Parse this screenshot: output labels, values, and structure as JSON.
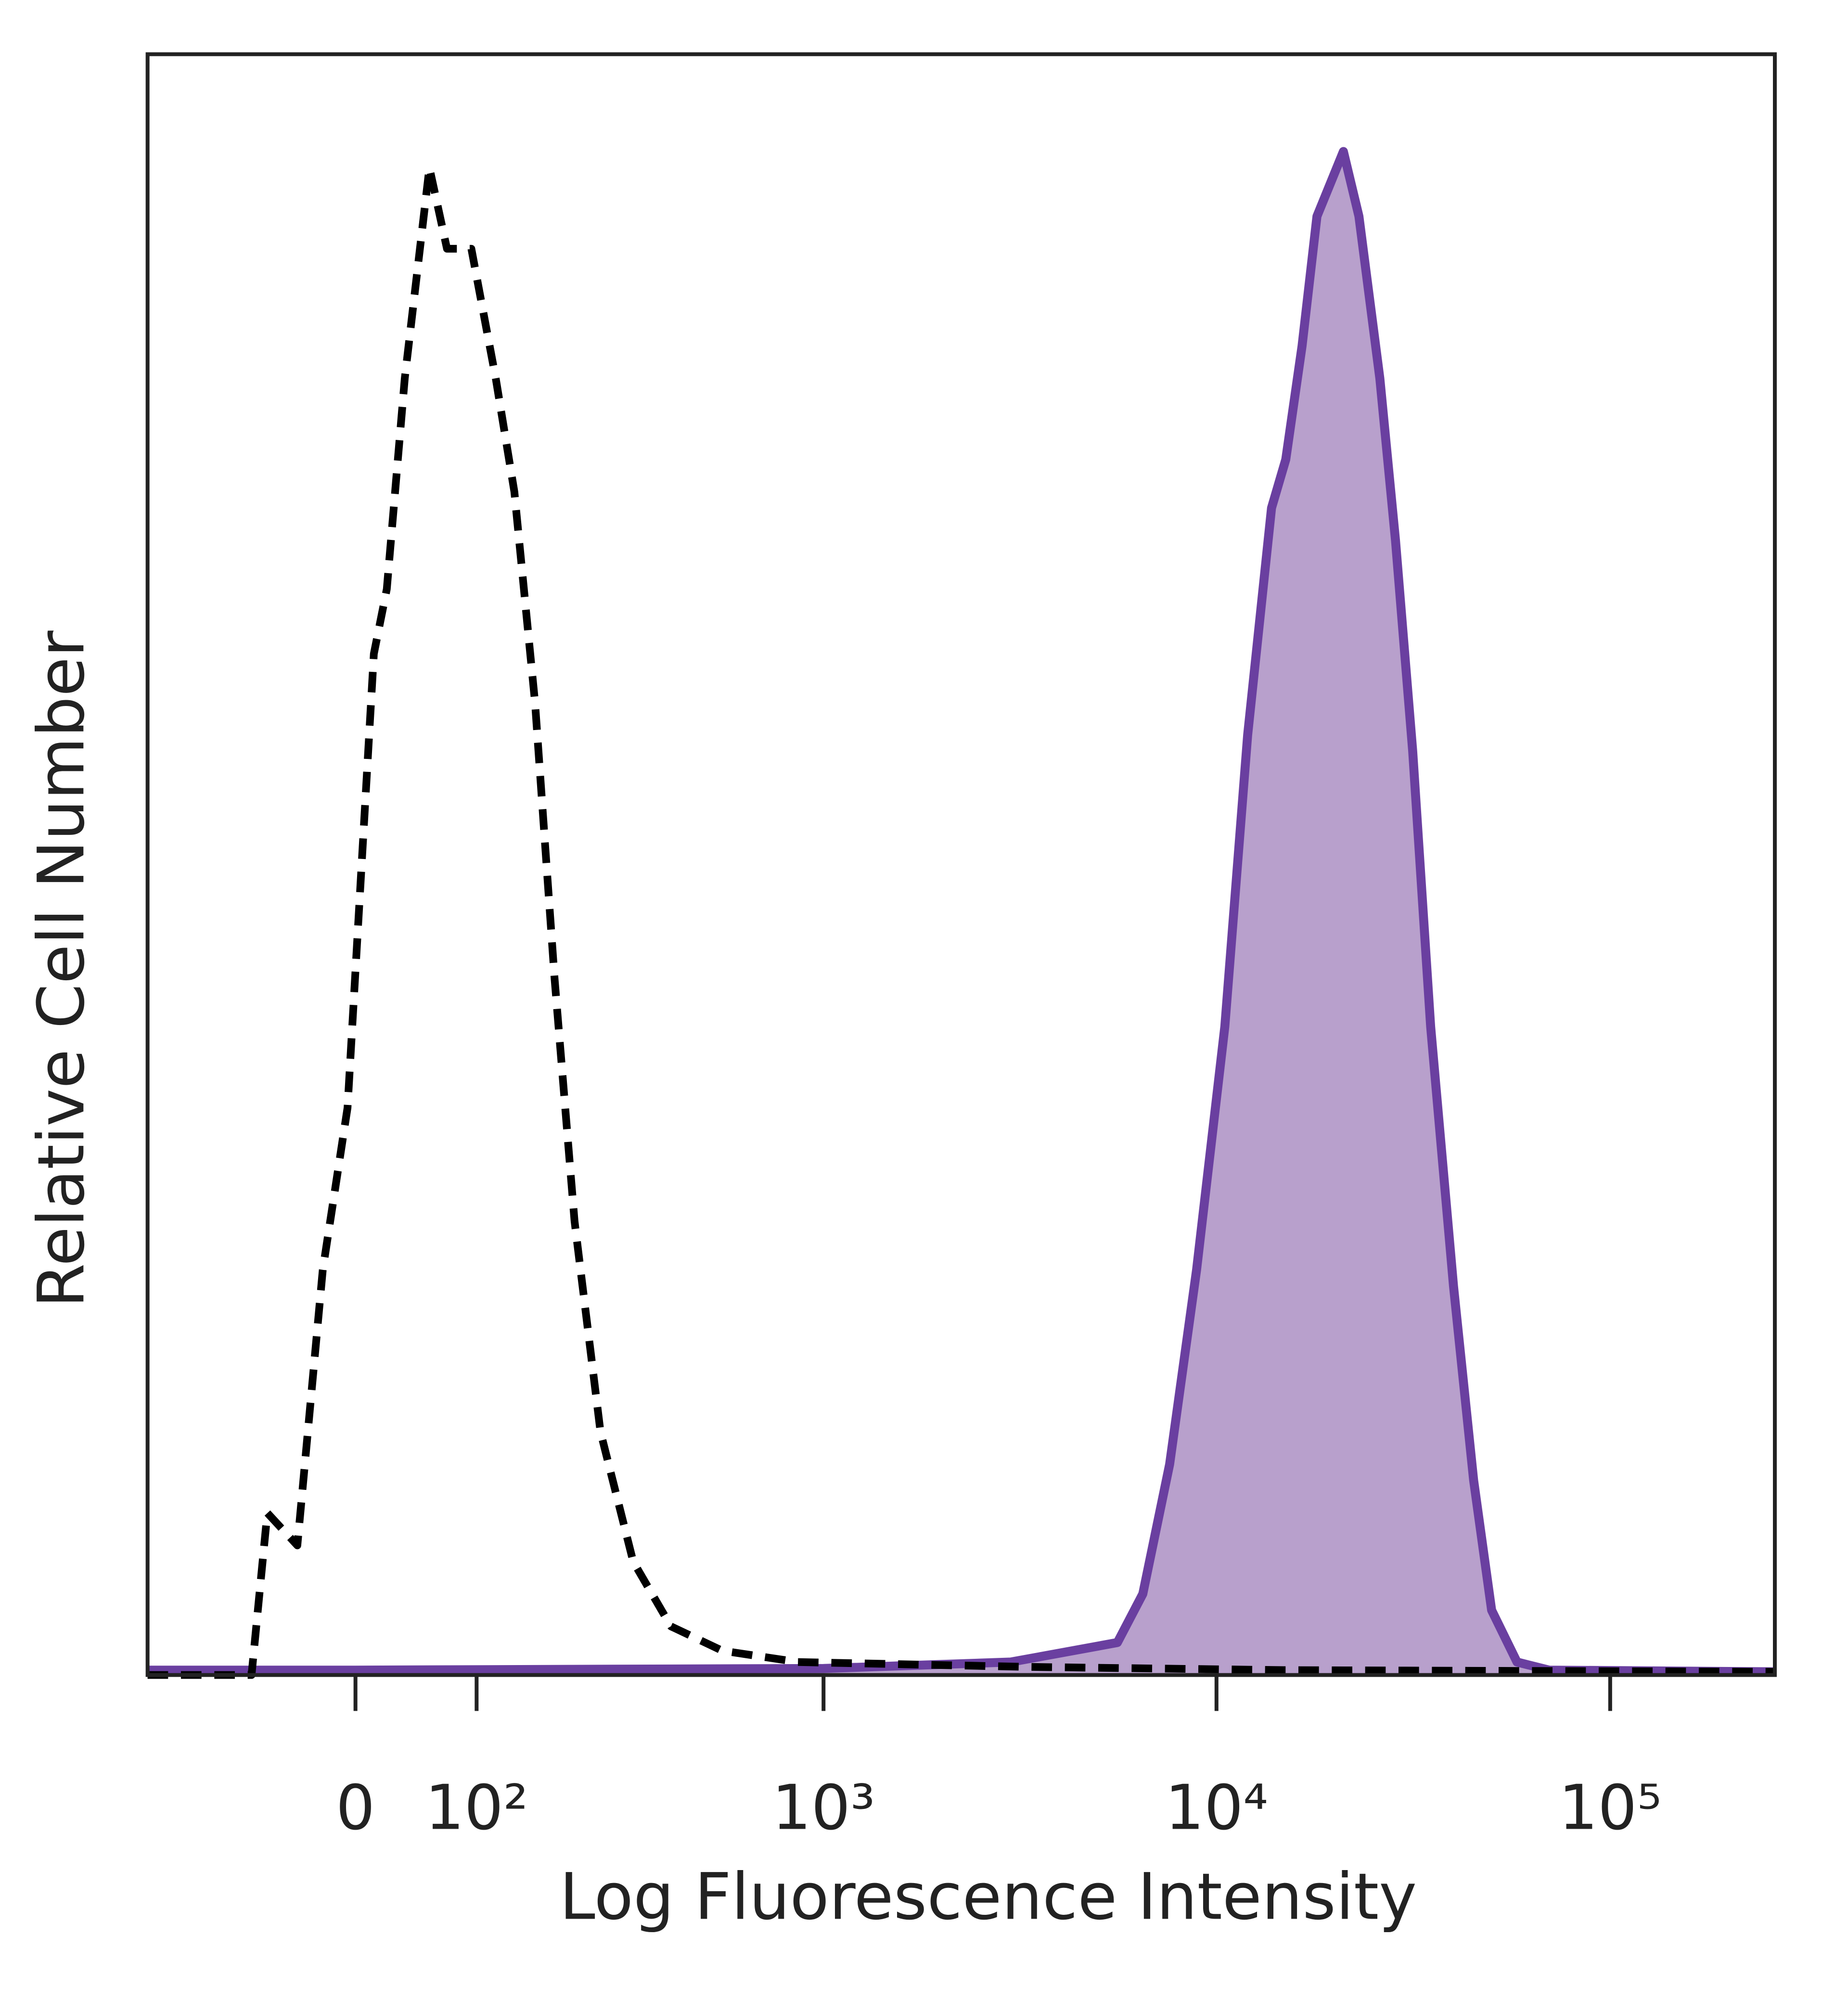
{
  "chart_data": {
    "type": "line",
    "x_label": "Log Fluorescence Intensity",
    "y_label": "Relative Cell Number",
    "xscale": "biexponential",
    "xlim": [
      -200,
      262000
    ],
    "ylim": [
      0,
      100
    ],
    "xticks": [
      0,
      {
        "value": 100,
        "label": "10²"
      },
      {
        "value": 1000,
        "label": "10³"
      },
      {
        "value": 10000,
        "label": "10⁴"
      },
      {
        "value": 100000,
        "label": "10⁵"
      }
    ],
    "series": [
      {
        "color": "#6a3fa0",
        "fill": "#b8a0cc",
        "dashed": false,
        "x": [
          -200,
          0,
          1000,
          3000,
          5600,
          6500,
          7600,
          8900,
          10500,
          12000,
          13800,
          15000,
          16500,
          18000,
          21000,
          23000,
          26000,
          28500,
          31500,
          35000,
          40000,
          45000,
          50000,
          58000,
          70000,
          262000
        ],
        "values": [
          0.3,
          0.3,
          0.4,
          0.8,
          2,
          5,
          13,
          25,
          40,
          58,
          72,
          75,
          82,
          90,
          94,
          90,
          80,
          70,
          57,
          40,
          24,
          12,
          4,
          0.8,
          0.3,
          0.2
        ]
      },
      {
        "color": "#000000",
        "fill": null,
        "dashed": true,
        "x": [
          -200,
          -84,
          -70,
          -45,
          -25,
          -6,
          14,
          24,
          38,
          58,
          73,
          95,
          119,
          139,
          163,
          188,
          216,
          257,
          317,
          401,
          548,
          860,
          3340,
          14900,
          262000
        ],
        "values": [
          0,
          0,
          10,
          8,
          25,
          35,
          63,
          67,
          80,
          93,
          88,
          88,
          80,
          73,
          60,
          43,
          28,
          15,
          7,
          3,
          1.5,
          0.8,
          0.5,
          0.3,
          0.2
        ]
      }
    ]
  }
}
